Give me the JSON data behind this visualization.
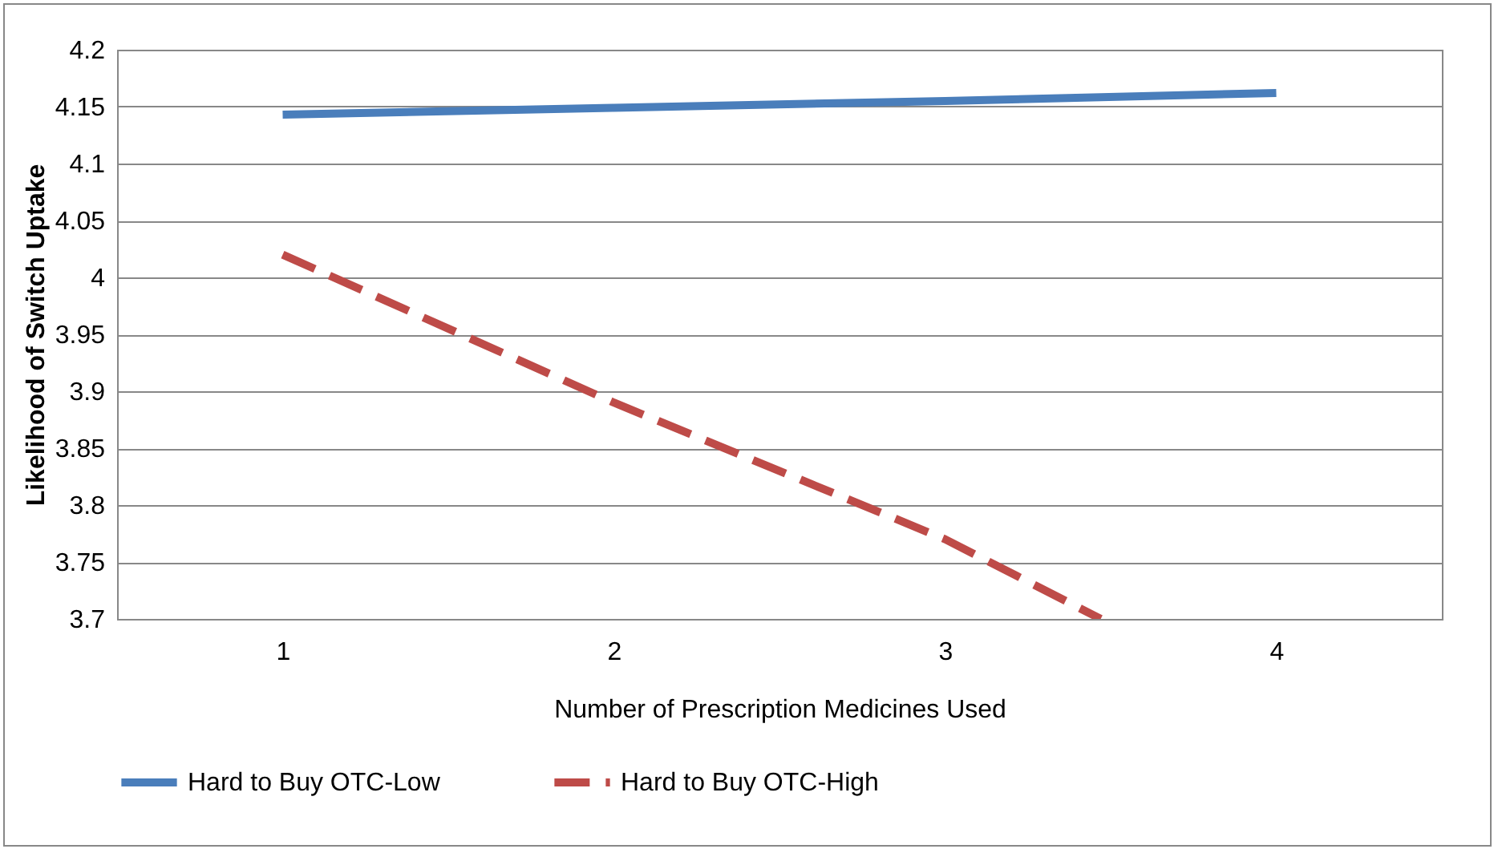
{
  "chart_data": {
    "type": "line",
    "xlabel": "Number of Prescription Medicines Used",
    "ylabel": "Likelihood of Switch Uptake",
    "xlim": [
      0.5,
      4.5
    ],
    "xticks": [
      1,
      2,
      3,
      4
    ],
    "ylim": [
      3.7,
      4.2
    ],
    "yticks": [
      3.7,
      3.75,
      3.8,
      3.85,
      3.9,
      3.95,
      4,
      4.05,
      4.1,
      4.15,
      4.2
    ],
    "grid": "y",
    "legend": "bottom",
    "series": [
      {
        "name": "Hard to Buy OTC-Low",
        "color": "#4a7ebb",
        "line_style": "solid",
        "x": [
          1,
          2,
          3,
          4
        ],
        "values": [
          4.143,
          4.149,
          4.155,
          4.162
        ]
      },
      {
        "name": "Hard to Buy OTC-High",
        "color": "#be4b48",
        "line_style": "dashed",
        "x": [
          1,
          2,
          3,
          3.47
        ],
        "values": [
          4.02,
          3.89,
          3.77,
          3.7
        ]
      }
    ]
  }
}
